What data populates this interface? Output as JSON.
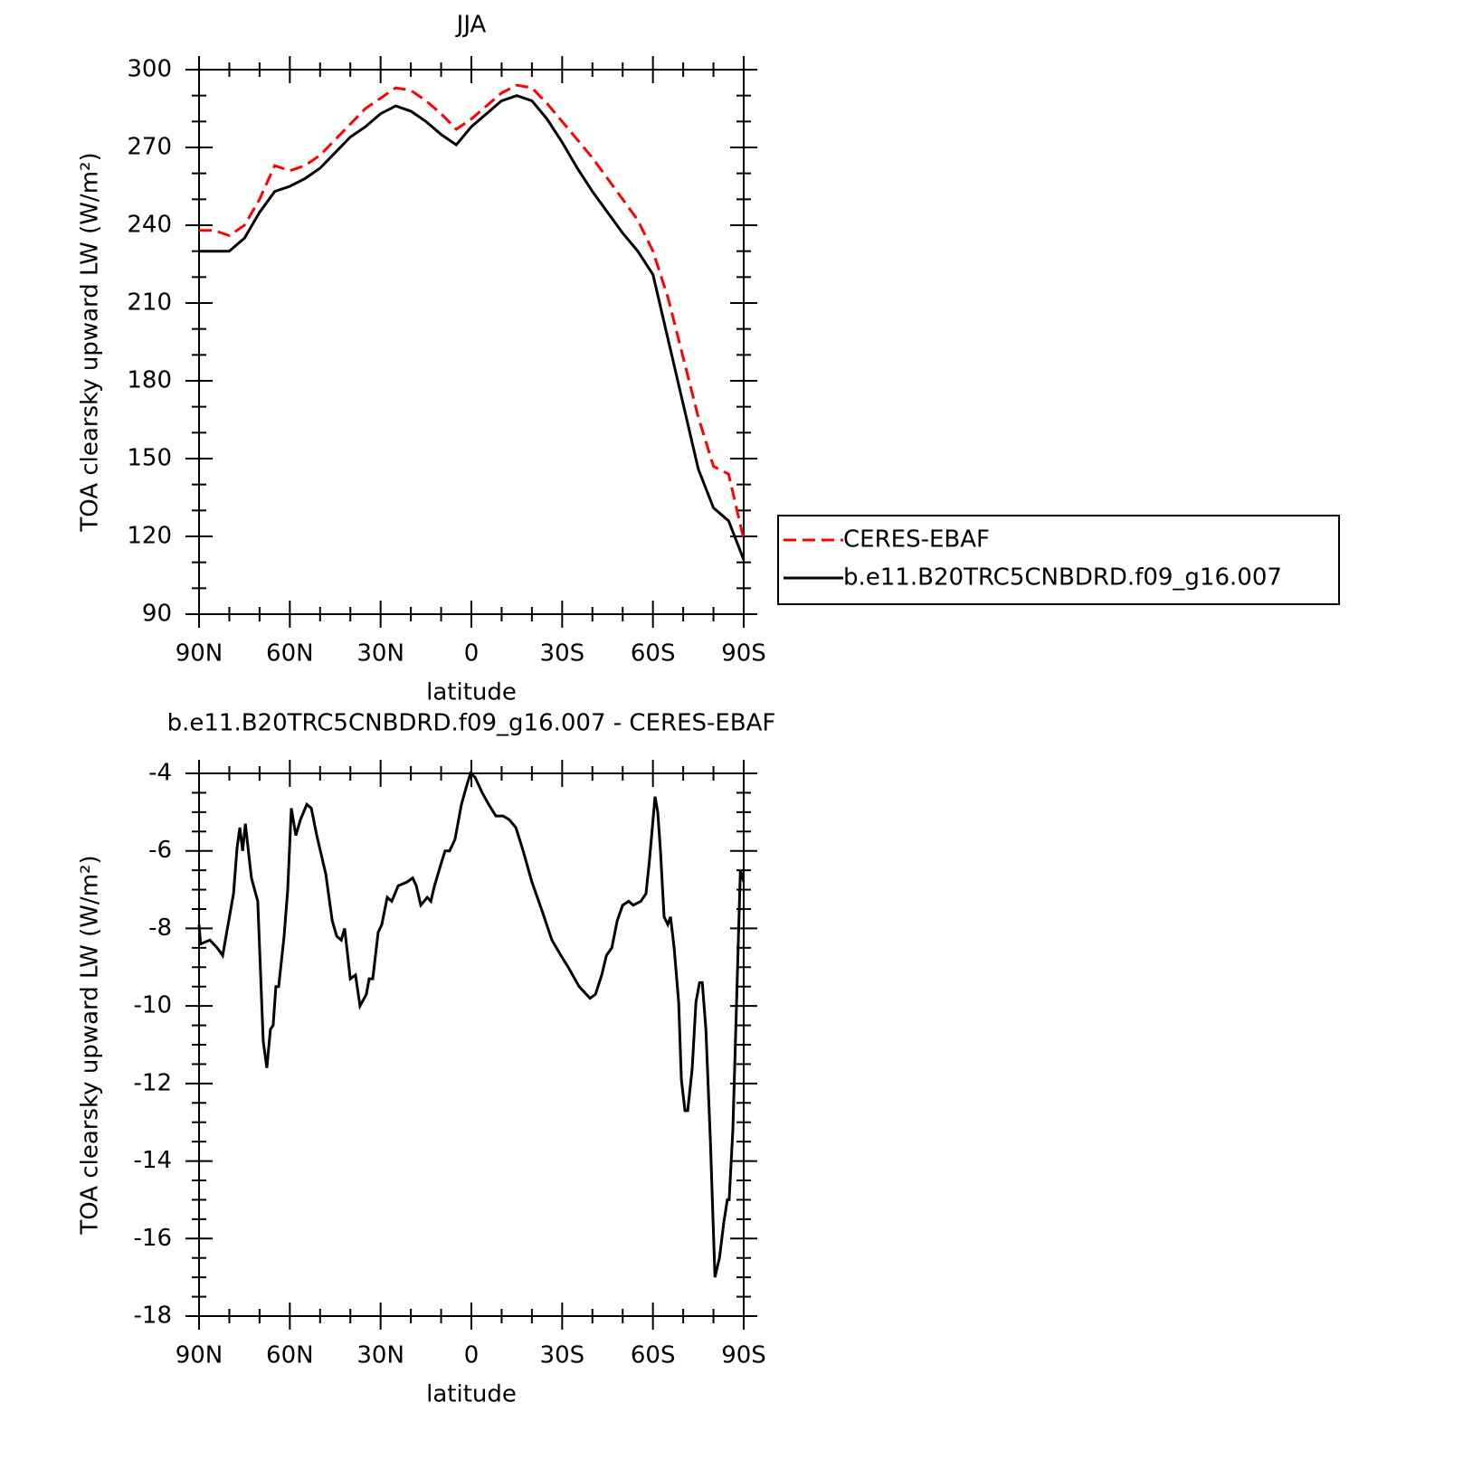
{
  "chart_data": [
    {
      "type": "line",
      "title": "JJA",
      "xlabel": "latitude",
      "ylabel": "TOA clearsky upward LW (W/m²)",
      "x": [
        90,
        85,
        80,
        75,
        70,
        65,
        60,
        55,
        50,
        45,
        40,
        35,
        30,
        25,
        20,
        15,
        10,
        5,
        0,
        -5,
        -10,
        -15,
        -20,
        -25,
        -30,
        -35,
        -40,
        -45,
        -50,
        -55,
        -60,
        -65,
        -70,
        -75,
        -80,
        -85,
        -90
      ],
      "xlim": [
        90,
        -90
      ],
      "xticks": [
        {
          "value": 90,
          "label": "90N"
        },
        {
          "value": 60,
          "label": "60N"
        },
        {
          "value": 30,
          "label": "30N"
        },
        0,
        {
          "value": -30,
          "label": "30S"
        },
        {
          "value": -60,
          "label": "60S"
        },
        {
          "value": -90,
          "label": "90S"
        }
      ],
      "ylim": [
        90,
        300
      ],
      "yticks": [
        90,
        120,
        150,
        180,
        210,
        240,
        270,
        300
      ],
      "legend": "right",
      "series": [
        {
          "name": "CERES-EBAF",
          "color": "#ff0000",
          "line_style": "dashed",
          "values": [
            238,
            238,
            236,
            240,
            250,
            263,
            261,
            263,
            267,
            273,
            279,
            285,
            289,
            293,
            292,
            288,
            283,
            277,
            281,
            286,
            291,
            294,
            293,
            287,
            280,
            273,
            266,
            258,
            250,
            242,
            230,
            212,
            189,
            166,
            147,
            144,
            119
          ]
        },
        {
          "name": "b.e11.B20TRC5CNBDRD.f09_g16.007",
          "color": "#000000",
          "line_style": "solid",
          "values": [
            230,
            230,
            230,
            235,
            245,
            253,
            255,
            258,
            262,
            268,
            274,
            278,
            283,
            286,
            284,
            280,
            275,
            271,
            278,
            283,
            288,
            290,
            288,
            281,
            272,
            262,
            253,
            245,
            237,
            230,
            221,
            196,
            171,
            146,
            131,
            126,
            111
          ]
        }
      ]
    },
    {
      "type": "line",
      "title": "b.e11.B20TRC5CNBDRD.f09_g16.007 - CERES-EBAF",
      "xlabel": "latitude",
      "ylabel": "TOA clearsky upward LW (W/m²)",
      "x": [
        90,
        89.5,
        86.4,
        84,
        82.2,
        80.4,
        78.6,
        77.4,
        76.5,
        75.6,
        74.7,
        72.7,
        70.6,
        68.8,
        67.6,
        66.4,
        65.5,
        64.6,
        63.7,
        61.9,
        60.7,
        59.5,
        58,
        56.5,
        54.4,
        52.9,
        51.1,
        48.1,
        46,
        44.5,
        43,
        41.9,
        40,
        38.3,
        36.8,
        34.7,
        33.8,
        32.6,
        30.8,
        29.6,
        27.8,
        26.3,
        24.2,
        21.2,
        19.4,
        18.2,
        16.7,
        14.6,
        13.4,
        12.2,
        9.9,
        8.7,
        7.2,
        5.4,
        3.3,
        1.5,
        0.3,
        -1.2,
        -3.6,
        -5.7,
        -8.1,
        -10.5,
        -12.6,
        -14.7,
        -17.1,
        -20,
        -23.6,
        -26.6,
        -29.6,
        -32,
        -35.6,
        -39.2,
        -41,
        -43.1,
        -44.6,
        -46.4,
        -48.2,
        -50,
        -52,
        -53.5,
        -56,
        -57.7,
        -58.9,
        -60.7,
        -61.6,
        -62.5,
        -63.7,
        -64.9,
        -65.8,
        -67,
        -68.5,
        -69.4,
        -70.6,
        -71.5,
        -73,
        -74.2,
        -75.4,
        -76.3,
        -77.5,
        -79,
        -80.5,
        -82,
        -83.4,
        -84.6,
        -85.2,
        -86.4,
        -87.6,
        -88.9,
        -90
      ],
      "values": [
        -7.9,
        -8.4,
        -8.3,
        -8.5,
        -8.7,
        -7.9,
        -7.1,
        -5.9,
        -5.4,
        -6.0,
        -5.3,
        -6.7,
        -7.3,
        -10.9,
        -11.6,
        -10.6,
        -10.5,
        -9.5,
        -9.5,
        -8.2,
        -7.0,
        -4.9,
        -5.6,
        -5.2,
        -4.8,
        -4.9,
        -5.6,
        -6.6,
        -7.8,
        -8.2,
        -8.3,
        -8.0,
        -9.3,
        -9.2,
        -10.0,
        -9.7,
        -9.3,
        -9.3,
        -8.1,
        -7.9,
        -7.2,
        -7.3,
        -6.9,
        -6.8,
        -6.7,
        -6.9,
        -7.4,
        -7.2,
        -7.3,
        -6.9,
        -6.3,
        -6.0,
        -6.0,
        -5.7,
        -4.8,
        -4.3,
        -4.0,
        -4.1,
        -4.5,
        -4.8,
        -5.1,
        -5.1,
        -5.2,
        -5.4,
        -6.0,
        -6.8,
        -7.6,
        -8.3,
        -8.7,
        -9.0,
        -9.5,
        -9.8,
        -9.7,
        -9.2,
        -8.7,
        -8.5,
        -7.8,
        -7.4,
        -7.3,
        -7.4,
        -7.3,
        -7.1,
        -6.2,
        -4.6,
        -5.0,
        -6.0,
        -7.7,
        -7.9,
        -7.7,
        -8.5,
        -9.9,
        -11.9,
        -12.7,
        -12.7,
        -11.6,
        -9.9,
        -9.4,
        -9.4,
        -10.6,
        -13.5,
        -17.0,
        -16.5,
        -15.6,
        -15.0,
        -15.0,
        -13.2,
        -10.0,
        -6.5,
        -6.8
      ],
      "color": "#000000",
      "line_style": "solid",
      "xlim": [
        90,
        -90
      ],
      "xticks": [
        {
          "value": 90,
          "label": "90N"
        },
        {
          "value": 60,
          "label": "60N"
        },
        {
          "value": 30,
          "label": "30N"
        },
        0,
        {
          "value": -30,
          "label": "30S"
        },
        {
          "value": -60,
          "label": "60S"
        },
        {
          "value": -90,
          "label": "90S"
        }
      ],
      "ylim": [
        -18,
        -4
      ],
      "yticks": [
        -18,
        -16,
        -14,
        -12,
        -10,
        -8,
        -6,
        -4
      ]
    }
  ]
}
